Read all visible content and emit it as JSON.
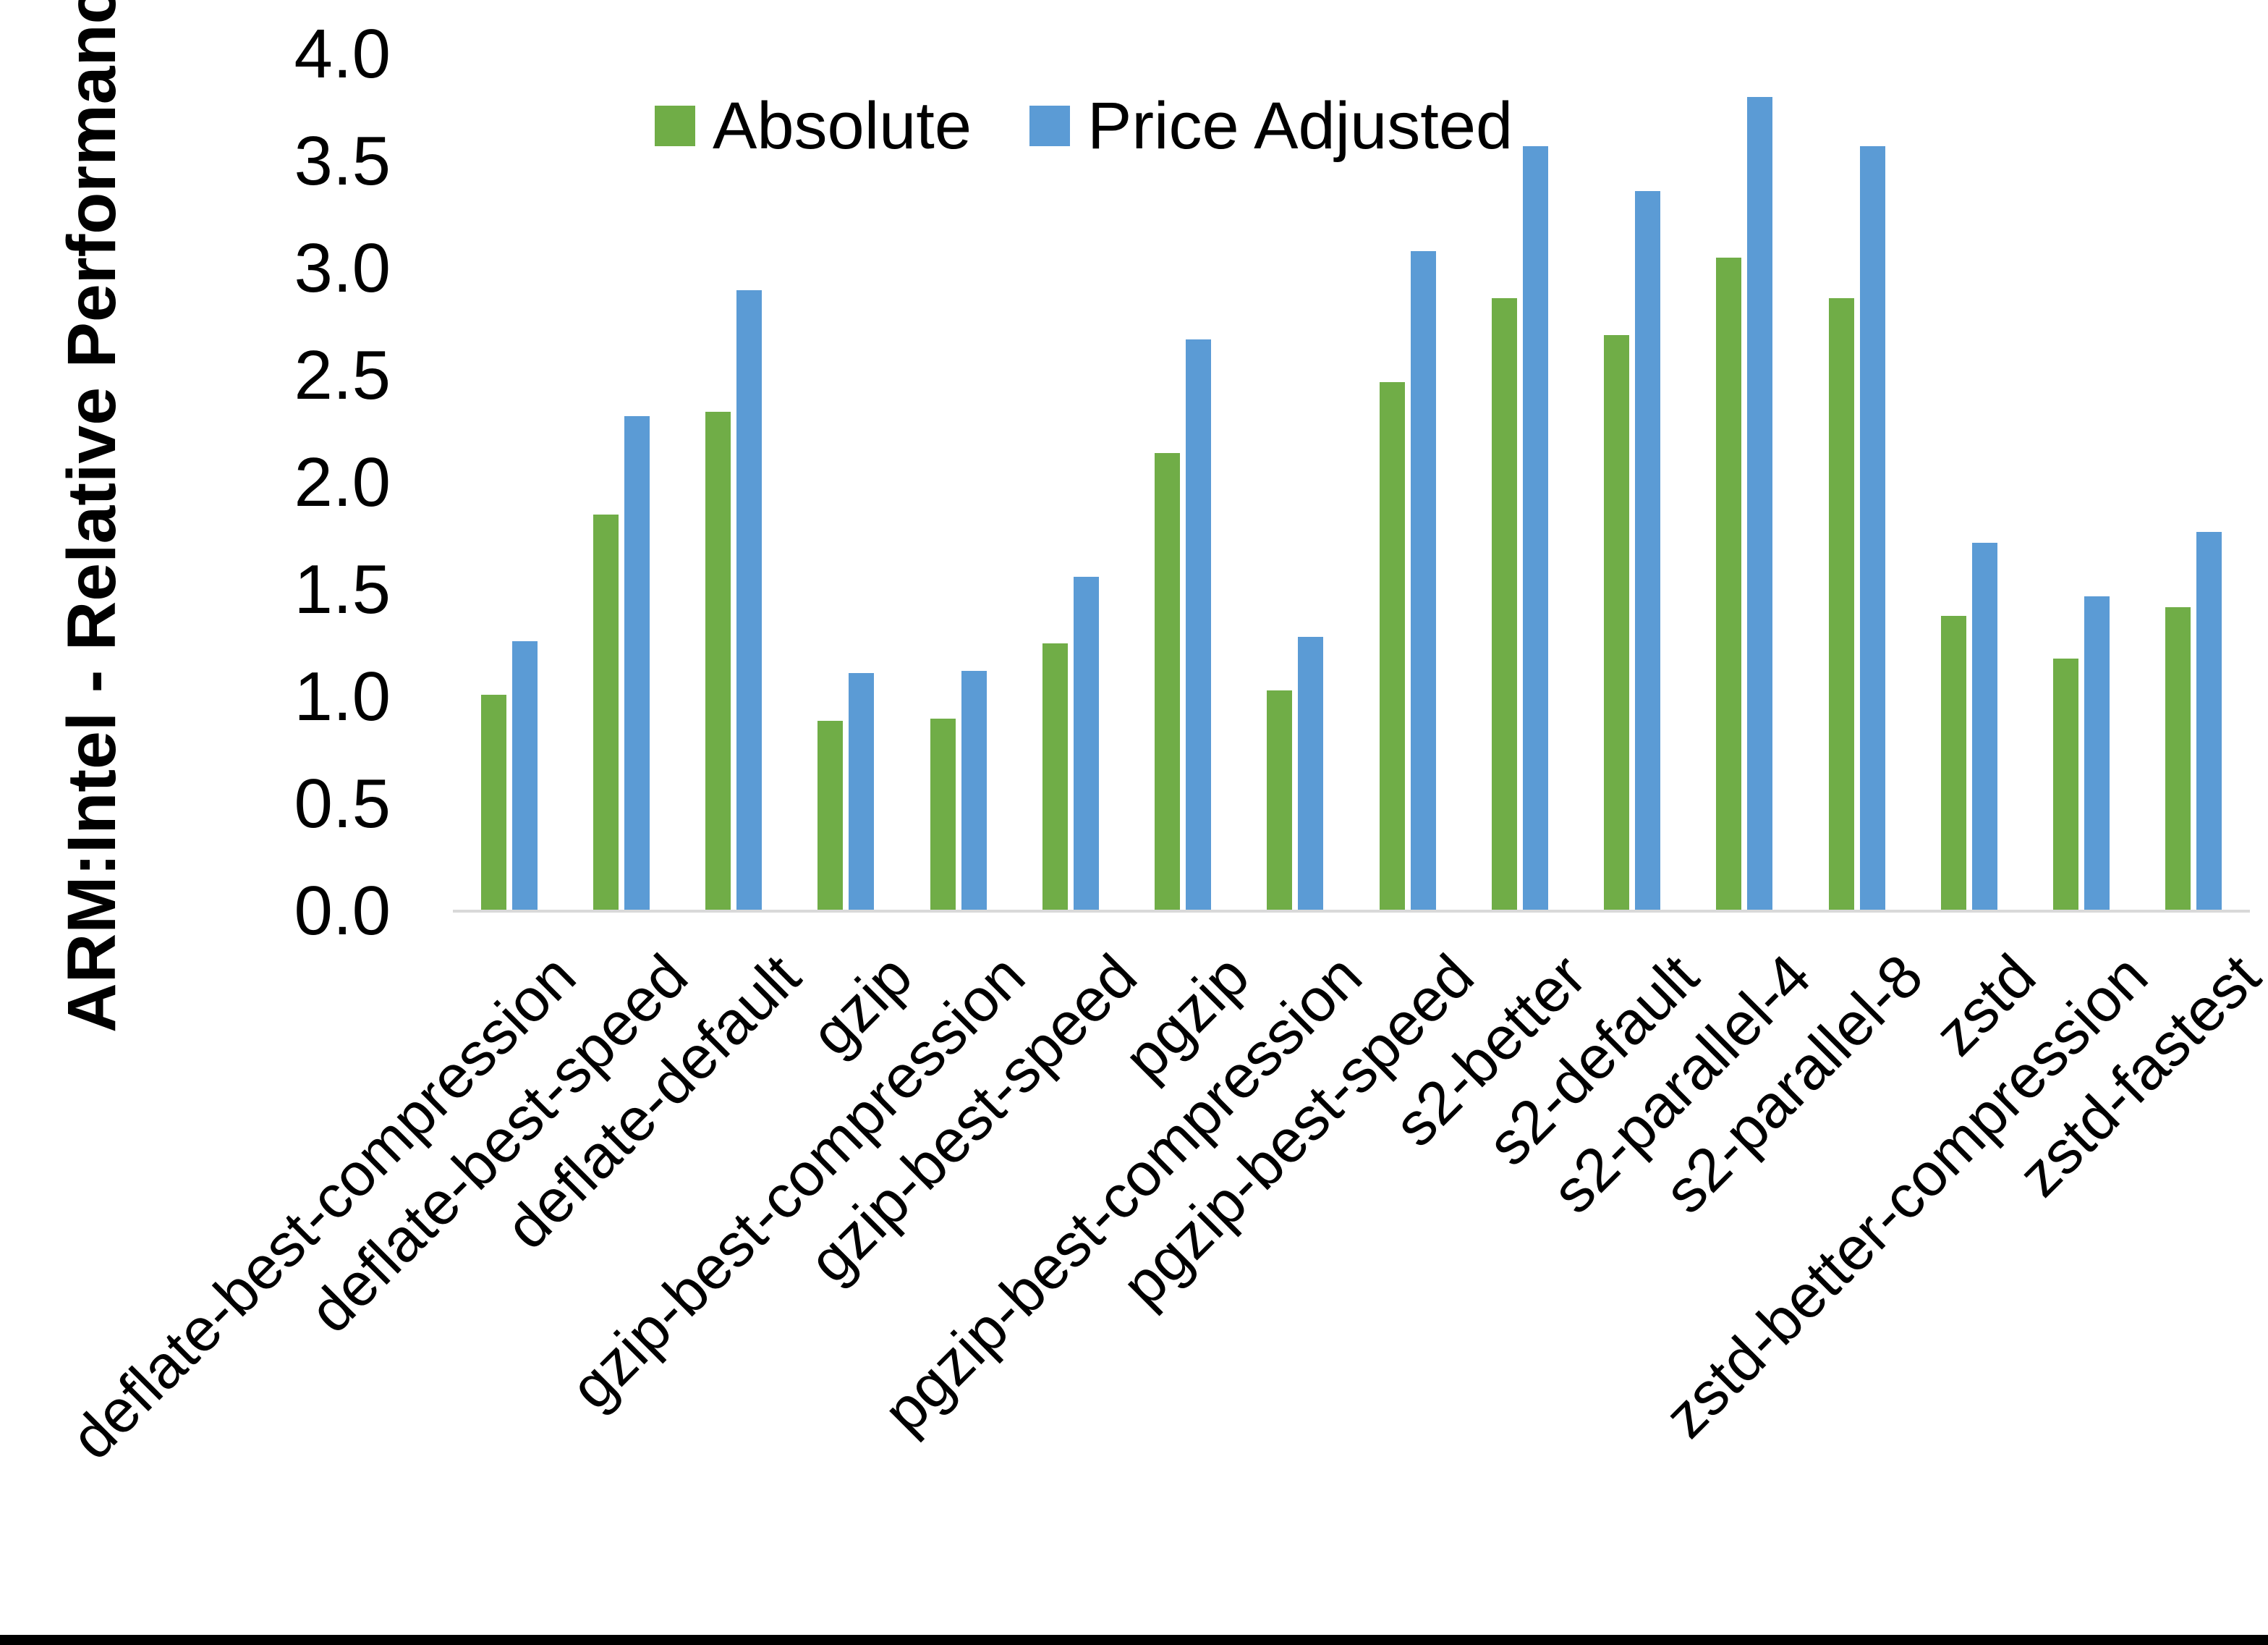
{
  "chart_data": {
    "type": "bar",
    "title": "",
    "xlabel": "",
    "ylabel": "ARM:Intel - Relative Performance",
    "ylim": [
      0.0,
      4.0
    ],
    "ytick_step": 0.5,
    "ytick_labels": [
      "0.0",
      "0.5",
      "1.0",
      "1.5",
      "2.0",
      "2.5",
      "3.0",
      "3.5",
      "4.0"
    ],
    "grid": false,
    "legend_position": "top-center",
    "categories": [
      "deflate-best-compression",
      "deflate-best-speed",
      "deflate-default",
      "gzip",
      "gzip-best-compression",
      "gzip-best-speed",
      "pgzip",
      "pgzip-best-compression",
      "pgzip-best-speed",
      "s2-better",
      "s2-default",
      "s2-parallel-4",
      "s2-parallel-8",
      "zstd",
      "zstd-better-compression",
      "zstd-fastest"
    ],
    "series": [
      {
        "name": "Absolute",
        "color": "#70AD47",
        "values": [
          1.01,
          1.85,
          2.33,
          0.89,
          0.9,
          1.25,
          2.14,
          1.03,
          2.47,
          2.86,
          2.69,
          3.05,
          2.86,
          1.38,
          1.18,
          1.42
        ]
      },
      {
        "name": "Price Adjusted",
        "color": "#5B9BD5",
        "values": [
          1.26,
          2.31,
          2.9,
          1.11,
          1.12,
          1.56,
          2.67,
          1.28,
          3.08,
          3.57,
          3.36,
          3.8,
          3.57,
          1.72,
          1.47,
          1.77
        ]
      }
    ]
  },
  "colors": {
    "axis_line": "#D9D9D9",
    "bottom_border": "#000000",
    "text": "#000000",
    "background": "#FFFFFF"
  }
}
